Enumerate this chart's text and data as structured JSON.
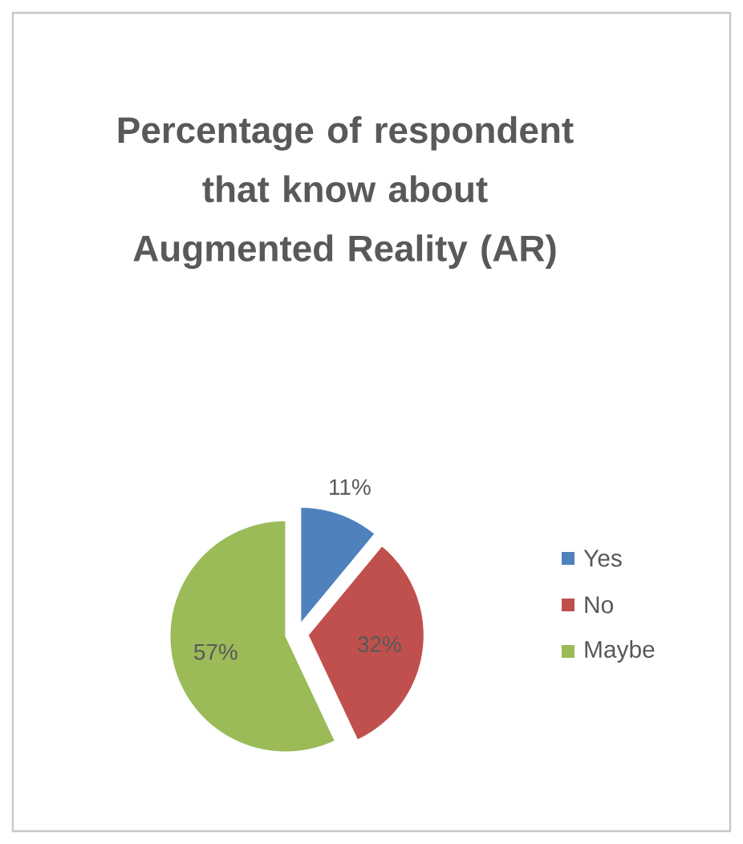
{
  "chart_data": {
    "type": "pie",
    "title": "Percentage of respondent that know about Augmented Reality (AR)",
    "categories": [
      "Yes",
      "No",
      "Maybe"
    ],
    "values": [
      11,
      32,
      57
    ],
    "value_labels": [
      "11%",
      "32%",
      "57%"
    ],
    "colors": [
      "#4f81bd",
      "#c0504d",
      "#9bbb59"
    ],
    "legend": "right"
  }
}
